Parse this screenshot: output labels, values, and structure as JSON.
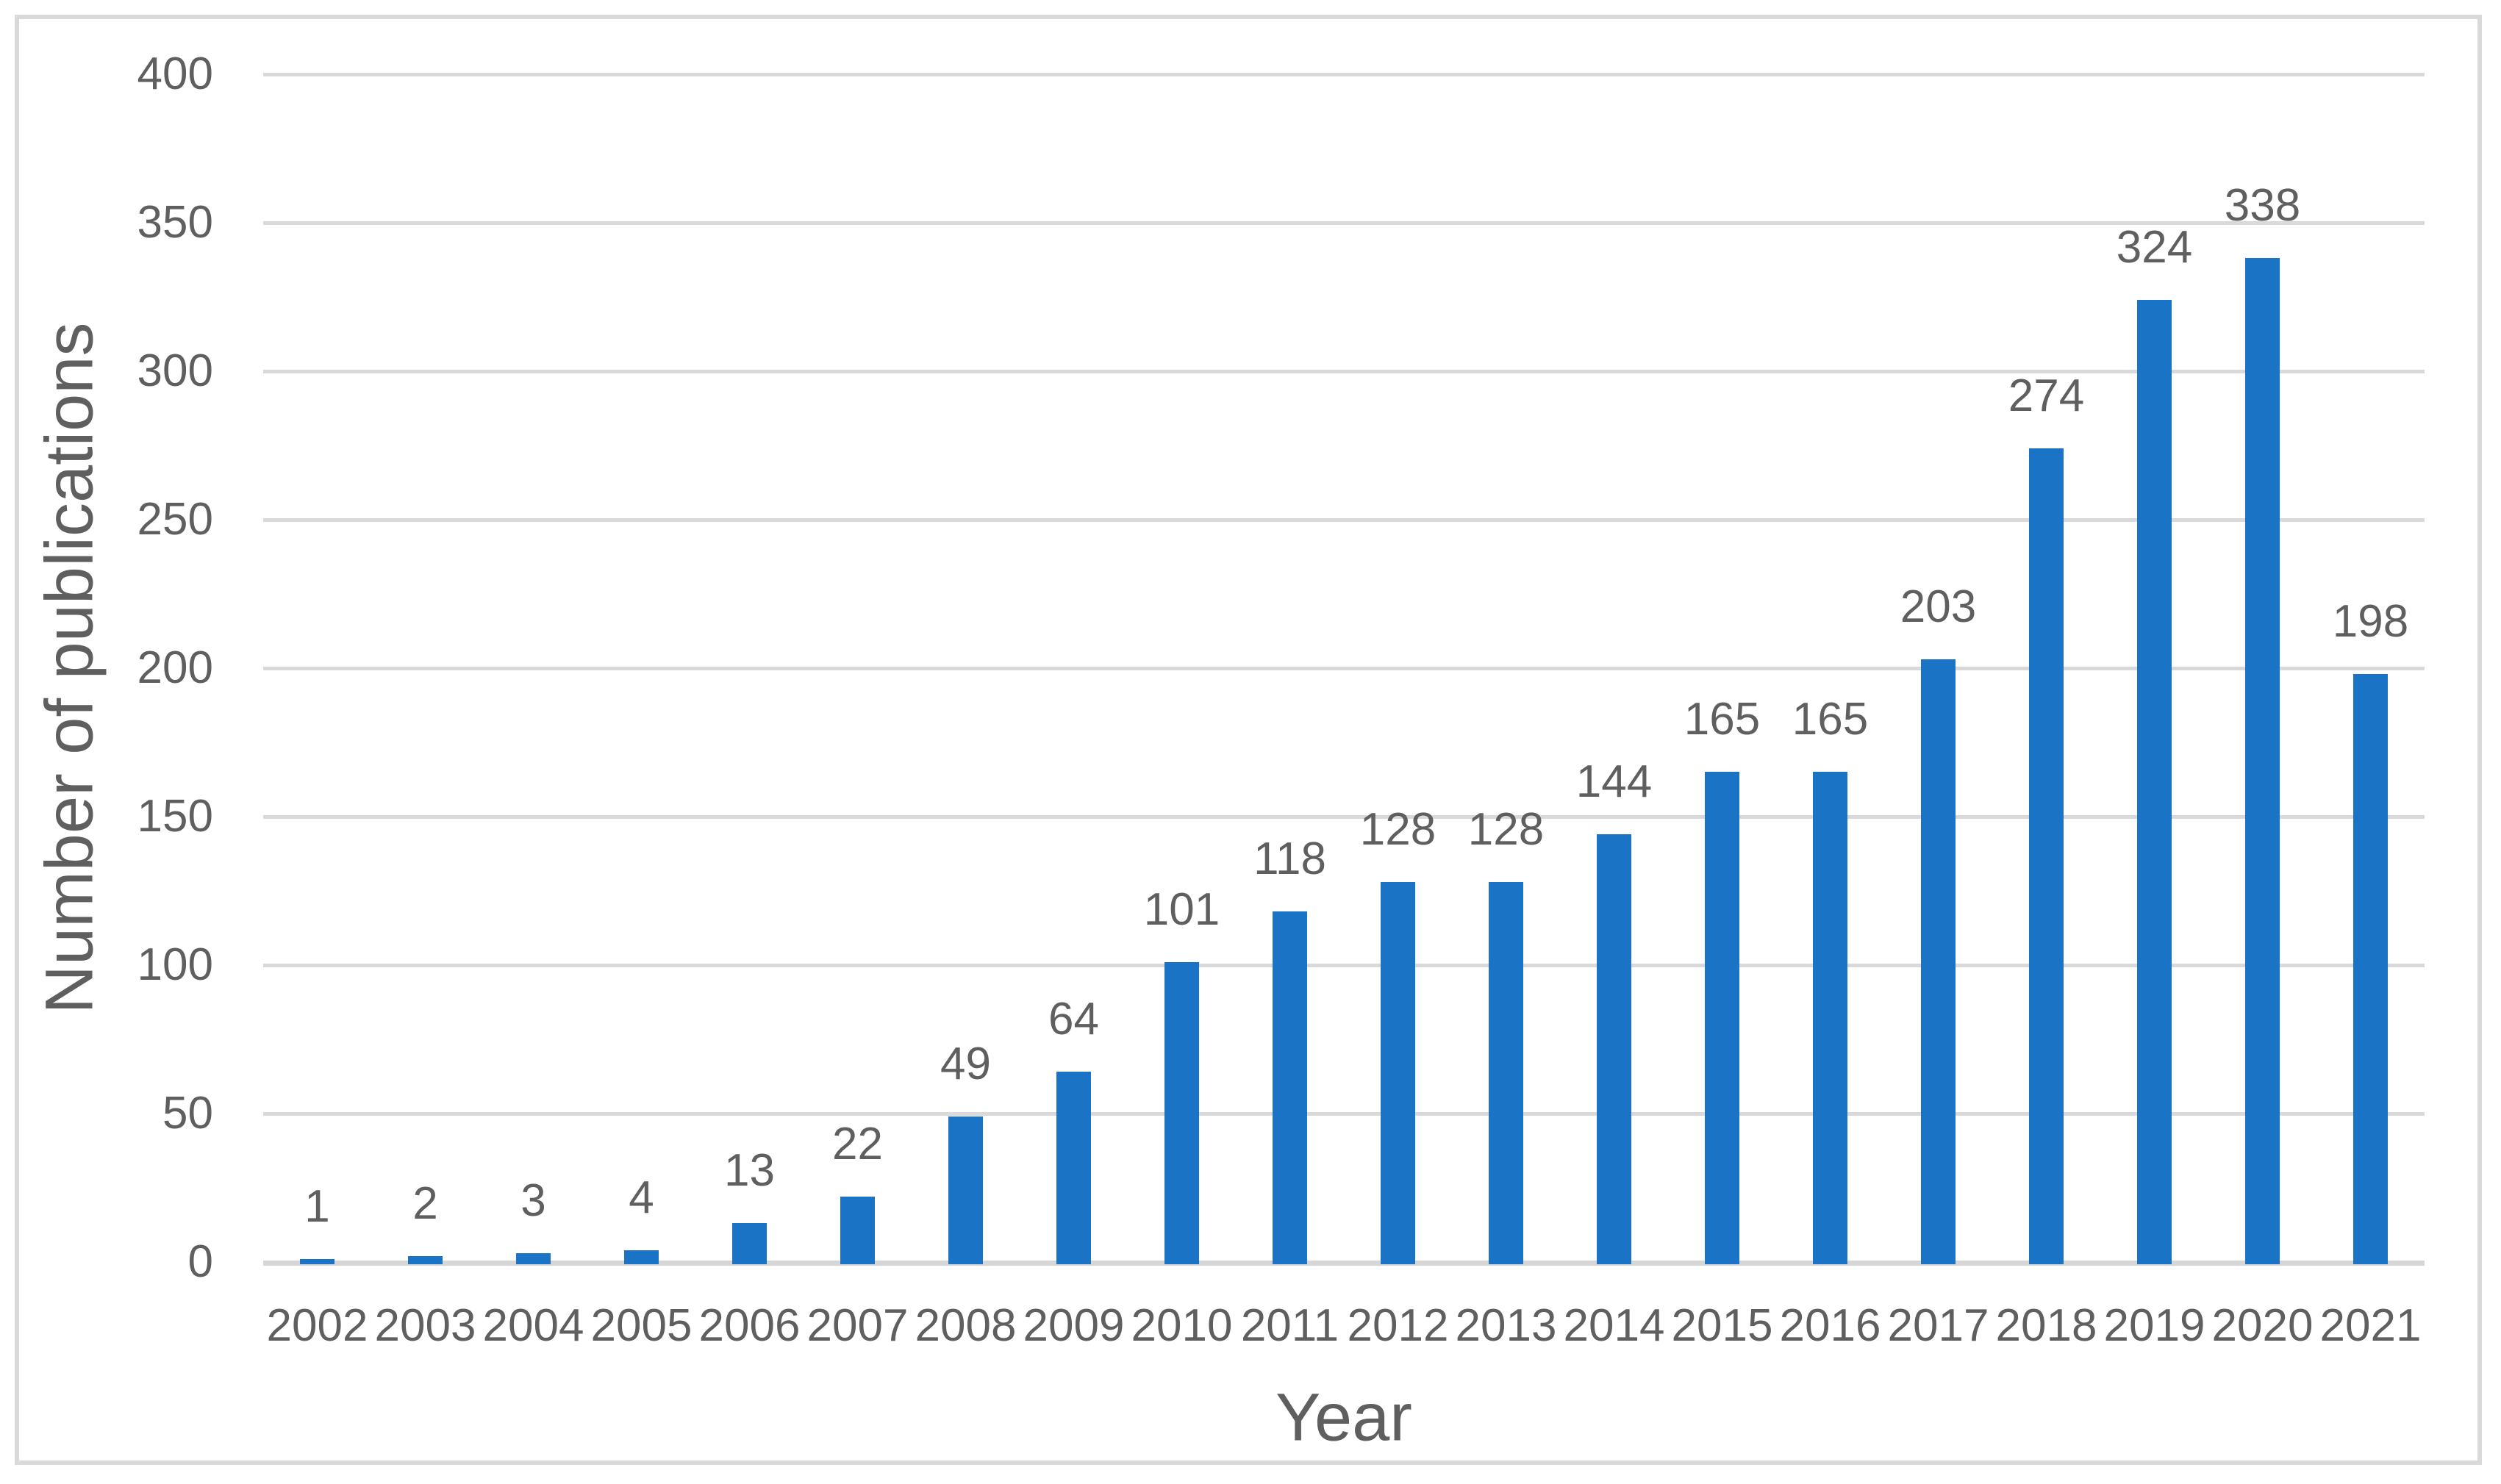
{
  "chart_data": {
    "type": "bar",
    "categories": [
      "2002",
      "2003",
      "2004",
      "2005",
      "2006",
      "2007",
      "2008",
      "2009",
      "2010",
      "2011",
      "2012",
      "2013",
      "2014",
      "2015",
      "2016",
      "2017",
      "2018",
      "2019",
      "2020",
      "2021"
    ],
    "values": [
      1,
      2,
      3,
      4,
      13,
      22,
      49,
      64,
      101,
      118,
      128,
      128,
      144,
      165,
      165,
      203,
      274,
      324,
      338,
      198
    ],
    "title": "",
    "xlabel": "Year",
    "ylabel": "Number of publications",
    "ylim": [
      0,
      400
    ],
    "ytick_step": 50,
    "yticks": [
      0,
      50,
      100,
      150,
      200,
      250,
      300,
      350,
      400
    ],
    "grid": true,
    "legend": "none",
    "data_labels": true
  },
  "colors": {
    "bar": "#1b73c6",
    "gridline": "#d9d9d9",
    "axis_line": "#d6d6d6",
    "text": "#5f5f5f",
    "border": "#d9d9d9",
    "background": "#ffffff"
  }
}
